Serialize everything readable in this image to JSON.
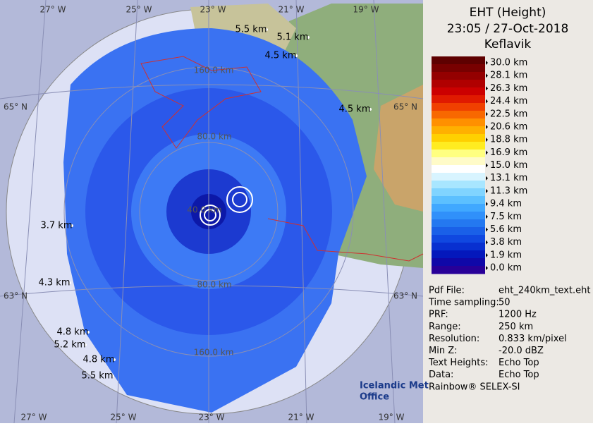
{
  "header": {
    "title": "EHT (Height)",
    "datetime": "23:05 / 27-Oct-2018",
    "site": "Keflavik"
  },
  "legend": {
    "labels": [
      "30.0 km",
      "28.1 km",
      "26.3 km",
      "24.4 km",
      "22.5 km",
      "20.6 km",
      "18.8 km",
      "16.9 km",
      "15.0 km",
      "13.1 km",
      "11.3 km",
      "9.4 km",
      "7.5 km",
      "5.6 km",
      "3.8 km",
      "1.9 km",
      "0.0 km"
    ]
  },
  "info": {
    "rows": [
      [
        "Pdf File:",
        "eht_240km_text.eht"
      ],
      [
        "Time sampling:",
        "50"
      ],
      [
        "PRF:",
        "1200 Hz"
      ],
      [
        "Range:",
        "250 km"
      ],
      [
        "Resolution:",
        "0.833 km/pixel"
      ],
      [
        "Min Z:",
        "-20.0 dBZ"
      ],
      [
        "Text Heights:",
        "Echo Top"
      ],
      [
        "Data:",
        "Echo Top"
      ]
    ],
    "footer": "Rainbow® SELEX-SI"
  },
  "map": {
    "lon_labels_top": [
      "27° W",
      "25° W",
      "23° W",
      "21° W",
      "19° W"
    ],
    "lon_labels_bottom": [
      "27° W",
      "25° W",
      "23° W",
      "21° W",
      "19° W"
    ],
    "lat_labels_left": [
      "65° N",
      "63° N"
    ],
    "lat_labels_right": [
      "65° N",
      "63° N"
    ],
    "range_labels": [
      "40.0 km",
      "80.0 km",
      "80.0 km",
      "160.0 km",
      "160.0 km"
    ],
    "height_labels": [
      "5.5 km",
      "5.1 km",
      "4.5 km",
      "4.5 km",
      "3.7 km",
      "4.3 km",
      "4.8 km",
      "5.2 km",
      "4.8 km",
      "5.5 km"
    ]
  },
  "logo": {
    "line1": "Icelandic Met",
    "line2": "Office"
  }
}
